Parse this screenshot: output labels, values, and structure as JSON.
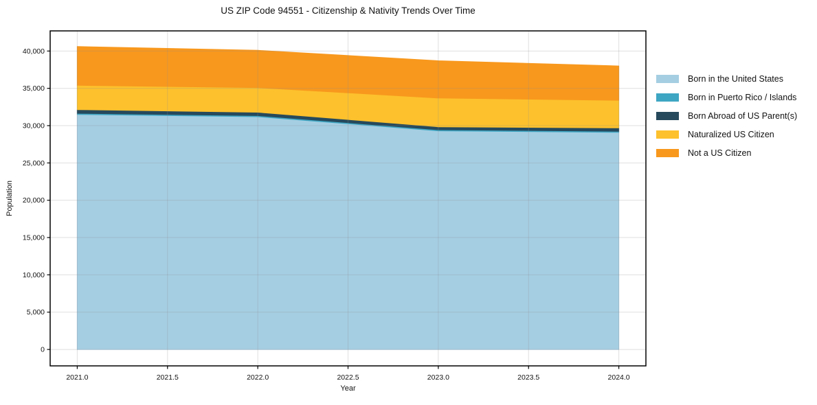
{
  "title": "US ZIP Code 94551 - Citizenship & Nativity Trends Over Time",
  "chart_data": {
    "type": "area",
    "stacked": true,
    "title": "US ZIP Code 94551 - Citizenship & Nativity Trends Over Time",
    "xlabel": "Year",
    "ylabel": "Population",
    "x": [
      2021,
      2022,
      2023,
      2024
    ],
    "series": [
      {
        "name": "Born in the United States",
        "color": "#a6cee3",
        "values": [
          31500,
          31200,
          29300,
          29100
        ]
      },
      {
        "name": "Born in Puerto Rico / Islands",
        "color": "#3ea6c3",
        "values": [
          150,
          150,
          150,
          150
        ]
      },
      {
        "name": "Born Abroad of US Parent(s)",
        "color": "#26495c",
        "values": [
          500,
          450,
          400,
          450
        ]
      },
      {
        "name": "Naturalized US Citizen",
        "color": "#fcc12d",
        "values": [
          3250,
          3300,
          3850,
          3700
        ]
      },
      {
        "name": "Not a US Citizen",
        "color": "#f8981d",
        "values": [
          5200,
          5000,
          5000,
          4600
        ]
      }
    ],
    "xlim": [
      2020.85,
      2024.15
    ],
    "ylim": [
      -2200,
      42700
    ],
    "xticks": [
      2021.0,
      2021.5,
      2022.0,
      2022.5,
      2023.0,
      2023.5,
      2024.0
    ],
    "xtick_labels": [
      "2021.0",
      "2021.5",
      "2022.0",
      "2022.5",
      "2023.0",
      "2023.5",
      "2024.0"
    ],
    "yticks": [
      0,
      5000,
      10000,
      15000,
      20000,
      25000,
      30000,
      35000,
      40000
    ],
    "ytick_labels": [
      "0",
      "5,000",
      "10,000",
      "15,000",
      "20,000",
      "25,000",
      "30,000",
      "35,000",
      "40,000"
    ],
    "grid": true,
    "grid_on_top": true,
    "legend_position": "right"
  },
  "colors": {
    "background": "#ffffff",
    "spine": "#000000",
    "grid": "#8b8b8b",
    "text": "#111111"
  }
}
